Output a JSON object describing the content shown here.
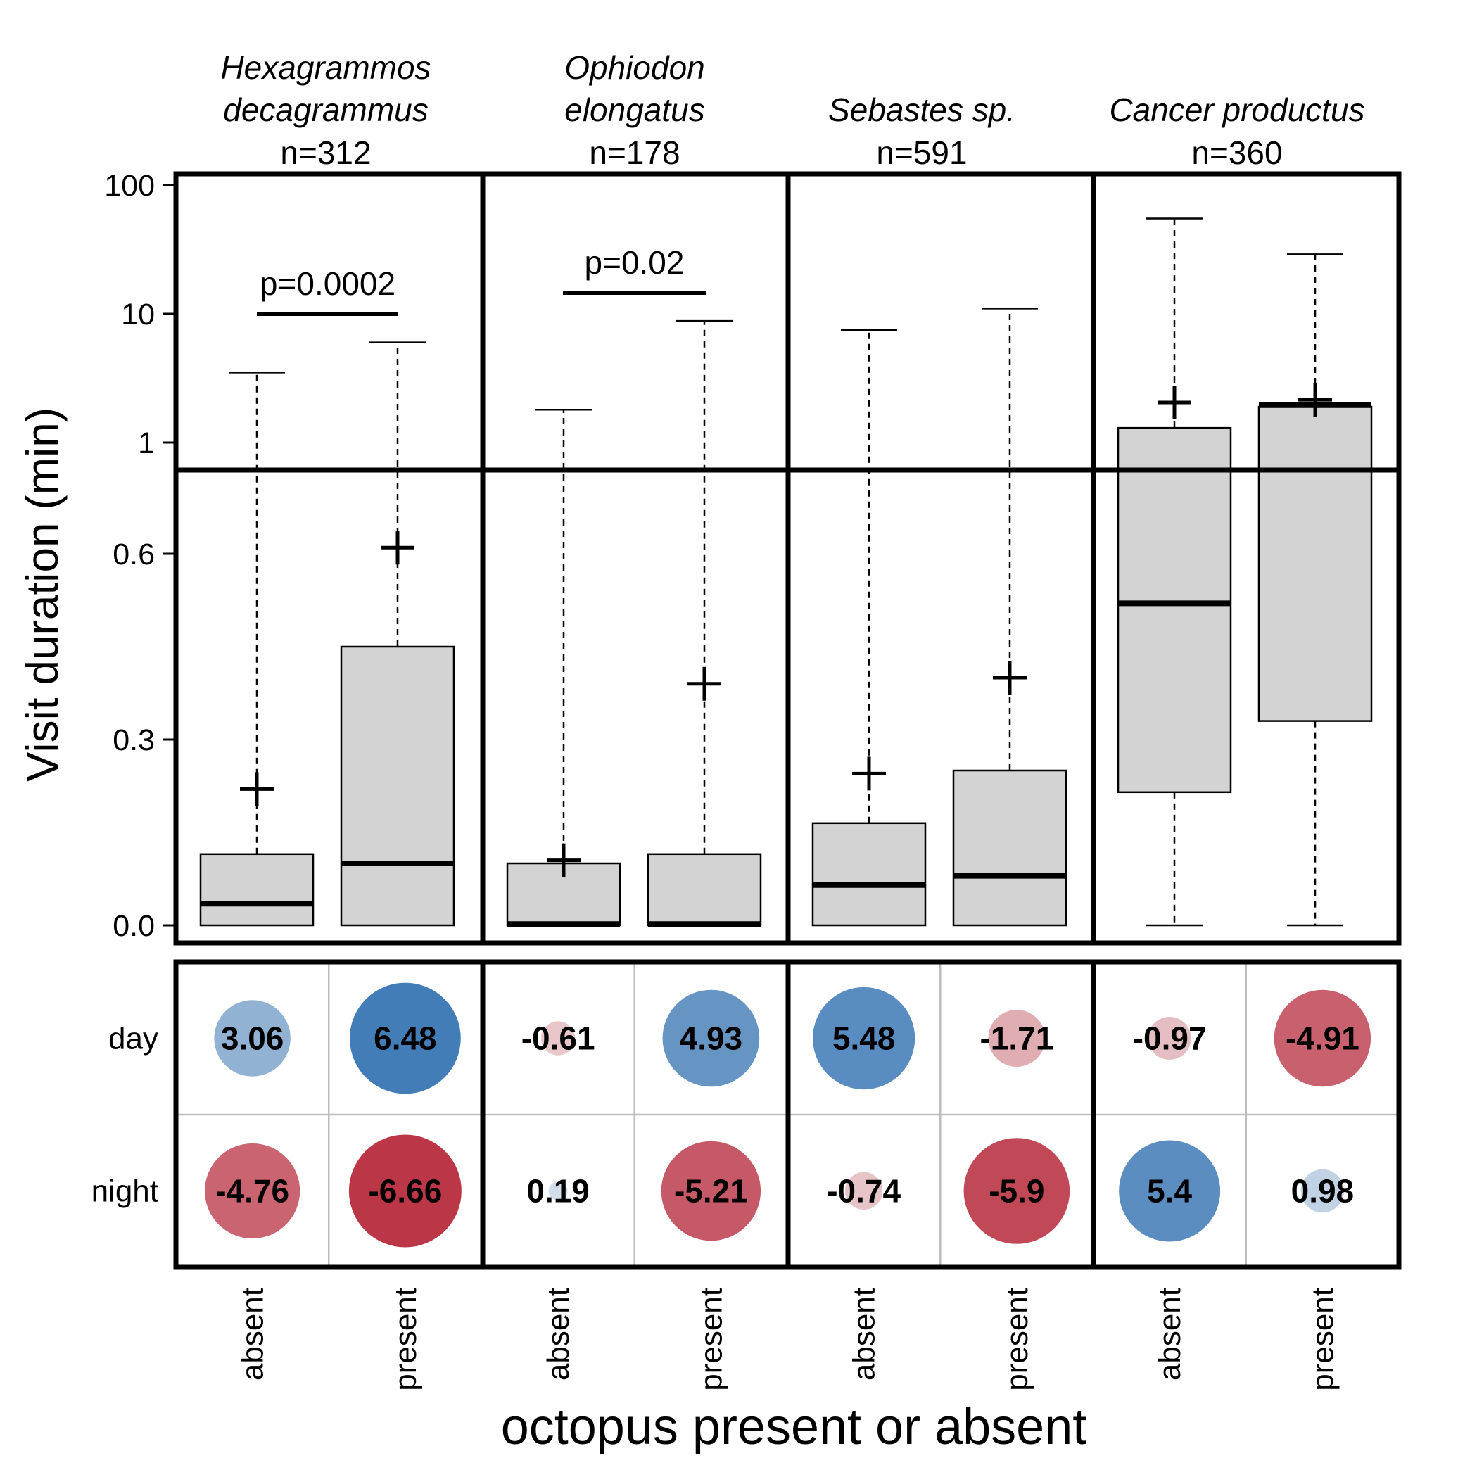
{
  "chart_data": [
    {
      "type": "boxplot",
      "ylabel": "Visit duration (min)",
      "xlabel": "octopus present or absent",
      "y_scale": "broken: linear 0-0.9 below, log10 1-100 above",
      "yticks_linear": [
        "0.0",
        "0.3",
        "0.6"
      ],
      "yticks_log": [
        "1",
        "10",
        "100"
      ],
      "categories": [
        "absent",
        "present"
      ],
      "panels": [
        {
          "species": "Hexagrammos decagrammus",
          "species_lines": [
            "Hexagrammos",
            "decagrammus"
          ],
          "n_label": "n=312",
          "pvalue": "p=0.0002",
          "boxes": [
            {
              "category": "absent",
              "q1": 0.0,
              "median": 0.035,
              "q3": 0.115,
              "whisker_low": 0.0,
              "whisker_high": 3.5,
              "mean": 0.22
            },
            {
              "category": "present",
              "q1": 0.0,
              "median": 0.1,
              "q3": 0.45,
              "whisker_low": 0.0,
              "whisker_high": 6.0,
              "mean": 0.61
            }
          ]
        },
        {
          "species": "Ophiodon elongatus",
          "species_lines": [
            "Ophiodon",
            "elongatus"
          ],
          "n_label": "n=178",
          "pvalue": "p=0.02",
          "boxes": [
            {
              "category": "absent",
              "q1": 0.0,
              "median": 0.002,
              "q3": 0.1,
              "whisker_low": 0.0,
              "whisker_high": 1.8,
              "mean": 0.105
            },
            {
              "category": "present",
              "q1": 0.0,
              "median": 0.002,
              "q3": 0.115,
              "whisker_low": 0.0,
              "whisker_high": 8.8,
              "mean": 0.39
            }
          ]
        },
        {
          "species": "Sebastes sp.",
          "species_lines": [
            "",
            "Sebastes sp."
          ],
          "n_label": "n=591",
          "pvalue": "",
          "boxes": [
            {
              "category": "absent",
              "q1": 0.0,
              "median": 0.065,
              "q3": 0.165,
              "whisker_low": 0.0,
              "whisker_high": 7.5,
              "mean": 0.245
            },
            {
              "category": "present",
              "q1": 0.0,
              "median": 0.08,
              "q3": 0.25,
              "whisker_low": 0.0,
              "whisker_high": 11.0,
              "mean": 0.4
            }
          ]
        },
        {
          "species": "Cancer productus",
          "species_lines": [
            "",
            "Cancer productus"
          ],
          "n_label": "n=360",
          "pvalue": "",
          "boxes": [
            {
              "category": "absent",
              "q1": 0.215,
              "median": 0.52,
              "q3": 1.3,
              "whisker_low": 0.0,
              "whisker_high": 55.0,
              "mean": 2.05
            },
            {
              "category": "present",
              "q1": 0.33,
              "median": 0.84,
              "q3": 1.9,
              "whisker_low": 0.0,
              "whisker_high": 29.0,
              "mean": 2.15
            }
          ]
        }
      ]
    },
    {
      "type": "heatmap",
      "description_rows": [
        "day",
        "night"
      ],
      "columns": [
        "absent",
        "present",
        "absent",
        "present",
        "absent",
        "present",
        "absent",
        "present"
      ],
      "values": [
        [
          3.06,
          6.48,
          -0.61,
          4.93,
          5.48,
          -1.71,
          -0.97,
          -4.91
        ],
        [
          -4.76,
          -6.66,
          0.19,
          -5.21,
          -0.74,
          -5.9,
          5.4,
          0.98
        ]
      ],
      "labels": [
        [
          "3.06",
          "6.48",
          "-0.61",
          "4.93",
          "5.48",
          "-1.71",
          "-0.97",
          "-4.91"
        ],
        [
          "-4.76",
          "-6.66",
          "0.19",
          "-5.21",
          "-0.74",
          "-5.9",
          "5.4",
          "0.98"
        ]
      ],
      "color_scale": {
        "positive": "#2166ac",
        "negative": "#b2182b",
        "neutral": "#f7f7f7"
      }
    }
  ]
}
